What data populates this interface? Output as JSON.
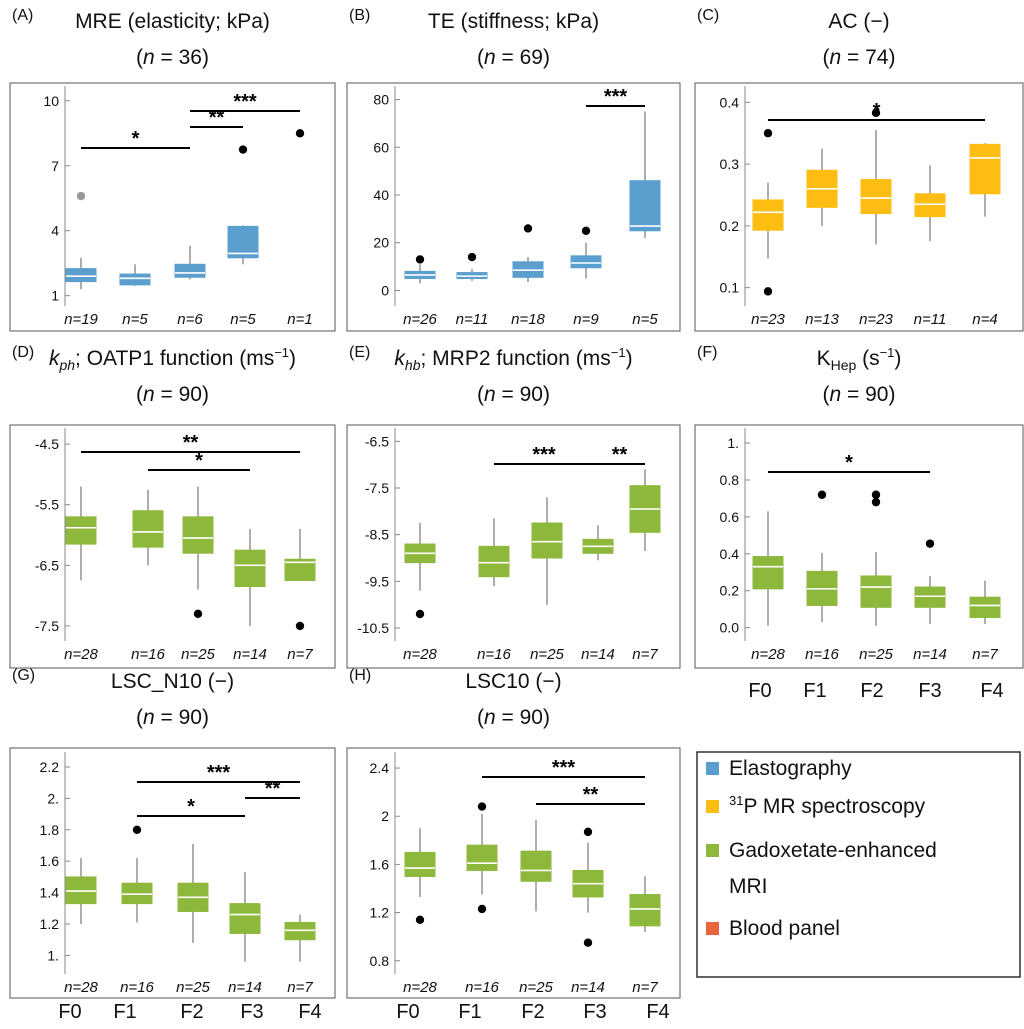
{
  "colors": {
    "elastography": "#5b9fcf",
    "spectroscopy": "#fdbd12",
    "gadoxetate": "#8db83c",
    "blood": "#e8643c"
  },
  "legend": {
    "items": [
      {
        "label": "Elastography",
        "color": "#5b9fcf"
      },
      {
        "label_sup": "31",
        "label": "P MR spectroscopy",
        "color": "#fdbd12"
      },
      {
        "label": "Gadoxetate-enhanced",
        "color": "#8db83c"
      },
      {
        "label": "MRI",
        "color": ""
      },
      {
        "label": "Blood panel",
        "color": "#e8643c"
      }
    ]
  },
  "group_labels": [
    "F0",
    "F1",
    "F2",
    "F3",
    "F4"
  ],
  "chart_data": [
    {
      "panel": "(A)",
      "type": "box",
      "title": "MRE (elasticity; kPa)",
      "subtitle": "(n = 36)",
      "color": "#5b9fcf",
      "ylim": [
        0.8,
        10.5
      ],
      "yticks": [
        1,
        4,
        7,
        10
      ],
      "groups": [
        "F0",
        "F1",
        "F2",
        "F3",
        "F4"
      ],
      "counts": [
        "n=19",
        "n=5",
        "n=6",
        "n=5",
        "n=1"
      ],
      "boxes": [
        {
          "min": 1.3,
          "q1": 1.65,
          "median": 1.9,
          "q3": 2.25,
          "max": 2.75,
          "outliers": [
            5.6
          ]
        },
        {
          "min": 1.45,
          "q1": 1.5,
          "median": 1.8,
          "q3": 2.0,
          "max": 2.45,
          "outliers": []
        },
        {
          "min": 1.75,
          "q1": 1.85,
          "median": 2.05,
          "q3": 2.45,
          "max": 3.3,
          "outliers": []
        },
        {
          "min": 2.45,
          "q1": 2.75,
          "median": 2.95,
          "q3": 4.2,
          "max": 4.25,
          "outliers": [
            7.75
          ]
        },
        {
          "min": null,
          "q1": null,
          "median": null,
          "q3": null,
          "max": null,
          "outliers": [
            8.5
          ]
        }
      ],
      "brackets": [
        {
          "from": 0,
          "to": 2,
          "level": 0,
          "label": "*"
        },
        {
          "from": 2,
          "to": 3,
          "level": 1,
          "label": "**"
        },
        {
          "from": 2,
          "to": 4,
          "level": 2,
          "label": "***"
        }
      ]
    },
    {
      "panel": "(B)",
      "type": "box",
      "title": "TE (stiffness; kPa)",
      "subtitle": "(n = 69)",
      "color": "#5b9fcf",
      "ylim": [
        -4,
        84
      ],
      "yticks": [
        0,
        20,
        40,
        60,
        80
      ],
      "groups": [
        "F0",
        "F1",
        "F2",
        "F3",
        "F4"
      ],
      "counts": [
        "n=26",
        "n=11",
        "n=18",
        "n=9",
        "n=5"
      ],
      "boxes": [
        {
          "min": 3,
          "q1": 5,
          "median": 6.5,
          "q3": 8,
          "max": 11,
          "outliers": [
            13
          ]
        },
        {
          "min": 4,
          "q1": 5,
          "median": 6,
          "q3": 7.5,
          "max": 9,
          "outliers": [
            14
          ]
        },
        {
          "min": 3.5,
          "q1": 5.5,
          "median": 8.5,
          "q3": 12,
          "max": 14,
          "outliers": [
            26
          ]
        },
        {
          "min": 5,
          "q1": 9.5,
          "median": 11.5,
          "q3": 14.5,
          "max": 20,
          "outliers": [
            25
          ]
        },
        {
          "min": 22,
          "q1": 25,
          "median": 27,
          "q3": 46,
          "max": 75,
          "outliers": []
        }
      ],
      "brackets": [
        {
          "from": 3,
          "to": 4,
          "level": 0,
          "label": "***"
        }
      ]
    },
    {
      "panel": "(C)",
      "type": "box",
      "title": "AC (−)",
      "subtitle": "(n = 74)",
      "color": "#fdbd12",
      "ylim": [
        0.08,
        0.42
      ],
      "yticks": [
        0.1,
        0.2,
        0.3,
        0.4
      ],
      "groups": [
        "F0",
        "F1",
        "F2",
        "F3",
        "F4"
      ],
      "counts": [
        "n=23",
        "n=13",
        "n=23",
        "n=11",
        "n=4"
      ],
      "boxes": [
        {
          "min": 0.147,
          "q1": 0.193,
          "median": 0.222,
          "q3": 0.242,
          "max": 0.27,
          "outliers": [
            0.35,
            0.094
          ]
        },
        {
          "min": 0.2,
          "q1": 0.23,
          "median": 0.26,
          "q3": 0.29,
          "max": 0.325,
          "outliers": []
        },
        {
          "min": 0.17,
          "q1": 0.22,
          "median": 0.245,
          "q3": 0.275,
          "max": 0.355,
          "outliers": [
            0.383
          ]
        },
        {
          "min": 0.175,
          "q1": 0.215,
          "median": 0.235,
          "q3": 0.252,
          "max": 0.298,
          "outliers": []
        },
        {
          "min": 0.215,
          "q1": 0.252,
          "median": 0.31,
          "q3": 0.332,
          "max": 0.334,
          "outliers": []
        }
      ],
      "brackets": [
        {
          "from": 0,
          "to": 4,
          "level": 0,
          "label": "*"
        }
      ]
    },
    {
      "panel": "(D)",
      "type": "box",
      "title": "k_ph; OATP1 function (ms⁻¹)",
      "subtitle": "(n = 90)",
      "title_parts": {
        "italic": "k",
        "sub": "ph",
        "rest": "; OATP1 function (ms",
        "sup": "−1",
        "end": ")"
      },
      "color": "#8db83c",
      "ylim": [
        -7.65,
        -4.3
      ],
      "yticks": [
        -4.5,
        -5.5,
        -6.5,
        -7.5
      ],
      "groups": [
        "F0",
        "F1",
        "F2",
        "F3",
        "F4"
      ],
      "counts": [
        "n=28",
        "n=16",
        "n=25",
        "n=14",
        "n=7"
      ],
      "boxes": [
        {
          "min": -6.75,
          "q1": -6.15,
          "median": -5.88,
          "q3": -5.7,
          "max": -5.2,
          "outliers": []
        },
        {
          "min": -6.5,
          "q1": -6.2,
          "median": -5.95,
          "q3": -5.6,
          "max": -5.25,
          "outliers": []
        },
        {
          "min": -6.9,
          "q1": -6.3,
          "median": -6.05,
          "q3": -5.7,
          "max": -5.2,
          "outliers": [
            -7.3
          ]
        },
        {
          "min": -7.5,
          "q1": -6.85,
          "median": -6.5,
          "q3": -6.25,
          "max": -5.9,
          "outliers": []
        },
        {
          "min": -6.75,
          "q1": -6.75,
          "median": -6.45,
          "q3": -6.4,
          "max": -5.9,
          "outliers": [
            -7.5
          ]
        }
      ],
      "brackets": [
        {
          "from": 1,
          "to": 3,
          "level": 0,
          "label": "*"
        },
        {
          "from": 0,
          "to": 4,
          "level": 1,
          "label": "**"
        }
      ]
    },
    {
      "panel": "(E)",
      "type": "box",
      "title": "k_hb; MRP2 function (ms⁻¹)",
      "subtitle": "(n = 90)",
      "title_parts": {
        "italic": "k",
        "sub": "hb",
        "rest": "; MRP2 function (ms",
        "sup": "−1",
        "end": ")"
      },
      "color": "#8db83c",
      "ylim": [
        -10.65,
        -6.3
      ],
      "yticks": [
        -6.5,
        -7.5,
        -8.5,
        -9.5,
        -10.5
      ],
      "groups": [
        "F0",
        "F1",
        "F2",
        "F3",
        "F4"
      ],
      "counts": [
        "n=28",
        "n=16",
        "n=25",
        "n=14",
        "n=7"
      ],
      "boxes": [
        {
          "min": -9.7,
          "q1": -9.1,
          "median": -8.9,
          "q3": -8.7,
          "max": -8.25,
          "outliers": [
            -10.2
          ]
        },
        {
          "min": -9.6,
          "q1": -9.4,
          "median": -9.1,
          "q3": -8.75,
          "max": -8.15,
          "outliers": []
        },
        {
          "min": -10.0,
          "q1": -9.0,
          "median": -8.65,
          "q3": -8.25,
          "max": -7.7,
          "outliers": []
        },
        {
          "min": -9.05,
          "q1": -8.9,
          "median": -8.75,
          "q3": -8.6,
          "max": -8.3,
          "outliers": []
        },
        {
          "min": -8.85,
          "q1": -8.45,
          "median": -7.95,
          "q3": -7.45,
          "max": -7.1,
          "outliers": []
        }
      ],
      "brackets": [
        {
          "from": 3,
          "to": 4,
          "level": 0,
          "label": "**"
        },
        {
          "from": 1,
          "to": 4,
          "level": 1,
          "label": "***"
        }
      ]
    },
    {
      "panel": "(F)",
      "type": "box",
      "title": "K_Hep (s⁻¹)",
      "subtitle": "(n = 90)",
      "title_parts": {
        "italic": "",
        "main": "K",
        "sub": "Hep",
        "rest": " (s",
        "sup": "−1",
        "end": ")"
      },
      "color": "#8db83c",
      "ylim": [
        -0.04,
        1.06
      ],
      "yticks": [
        0.0,
        0.2,
        0.4,
        0.6,
        0.8,
        1.0
      ],
      "ytick_labels": [
        "0.0",
        "0.2",
        "0.4",
        "0.6",
        "0.8",
        "1."
      ],
      "groups": [
        "F0",
        "F1",
        "F2",
        "F3",
        "F4"
      ],
      "counts": [
        "n=28",
        "n=16",
        "n=25",
        "n=14",
        "n=7"
      ],
      "boxes": [
        {
          "min": 0.01,
          "q1": 0.21,
          "median": 0.33,
          "q3": 0.385,
          "max": 0.63,
          "outliers": []
        },
        {
          "min": 0.03,
          "q1": 0.12,
          "median": 0.21,
          "q3": 0.305,
          "max": 0.405,
          "outliers": [
            0.72
          ]
        },
        {
          "min": 0.01,
          "q1": 0.11,
          "median": 0.22,
          "q3": 0.28,
          "max": 0.41,
          "outliers": [
            0.72,
            0.68
          ]
        },
        {
          "min": 0.02,
          "q1": 0.11,
          "median": 0.17,
          "q3": 0.22,
          "max": 0.28,
          "outliers": [
            0.455
          ]
        },
        {
          "min": 0.02,
          "q1": 0.055,
          "median": 0.12,
          "q3": 0.165,
          "max": 0.255,
          "outliers": []
        }
      ],
      "brackets": [
        {
          "from": 0,
          "to": 3,
          "level": 0,
          "label": "*"
        }
      ]
    },
    {
      "panel": "(G)",
      "type": "box",
      "title": "LSC_N10 (−)",
      "subtitle": "(n = 90)",
      "color": "#8db83c",
      "ylim": [
        0.92,
        2.27
      ],
      "yticks": [
        1.0,
        1.2,
        1.4,
        1.6,
        1.8,
        2.0,
        2.2
      ],
      "ytick_labels": [
        "1.",
        "1.2",
        "1.4",
        "1.6",
        "1.8",
        "2.",
        "2.2"
      ],
      "groups": [
        "F0",
        "F1",
        "F2",
        "F3",
        "F4"
      ],
      "counts": [
        "n=28",
        "n=16",
        "n=25",
        "n=14",
        "n=7"
      ],
      "boxes": [
        {
          "min": 1.2,
          "q1": 1.33,
          "median": 1.41,
          "q3": 1.5,
          "max": 1.62,
          "outliers": []
        },
        {
          "min": 1.21,
          "q1": 1.33,
          "median": 1.39,
          "q3": 1.46,
          "max": 1.62,
          "outliers": [
            1.8
          ]
        },
        {
          "min": 1.08,
          "q1": 1.28,
          "median": 1.37,
          "q3": 1.46,
          "max": 1.71,
          "outliers": []
        },
        {
          "min": 0.96,
          "q1": 1.14,
          "median": 1.26,
          "q3": 1.33,
          "max": 1.53,
          "outliers": []
        },
        {
          "min": 0.96,
          "q1": 1.1,
          "median": 1.16,
          "q3": 1.21,
          "max": 1.26,
          "outliers": []
        }
      ],
      "brackets": [
        {
          "from": 1,
          "to": 3,
          "level": 0,
          "label": "*"
        },
        {
          "from": 3,
          "to": 4,
          "level": 1,
          "label": "**"
        },
        {
          "from": 1,
          "to": 4,
          "level": 2,
          "label": "***"
        }
      ]
    },
    {
      "panel": "(H)",
      "type": "box",
      "title": "LSC10 (−)",
      "subtitle": "(n = 90)",
      "color": "#8db83c",
      "ylim": [
        0.74,
        2.5
      ],
      "yticks": [
        0.8,
        1.2,
        1.6,
        2.0,
        2.4
      ],
      "ytick_labels": [
        "0.8",
        "1.2",
        "1.6",
        "2",
        "2.4"
      ],
      "groups": [
        "F0",
        "F1",
        "F2",
        "F3",
        "F4"
      ],
      "counts": [
        "n=28",
        "n=16",
        "n=25",
        "n=14",
        "n=7"
      ],
      "boxes": [
        {
          "min": 1.33,
          "q1": 1.5,
          "median": 1.57,
          "q3": 1.7,
          "max": 1.9,
          "outliers": [
            1.14
          ]
        },
        {
          "min": 1.35,
          "q1": 1.55,
          "median": 1.61,
          "q3": 1.76,
          "max": 2.02,
          "outliers": [
            2.08,
            1.23
          ]
        },
        {
          "min": 1.21,
          "q1": 1.46,
          "median": 1.55,
          "q3": 1.71,
          "max": 1.97,
          "outliers": []
        },
        {
          "min": 1.2,
          "q1": 1.33,
          "median": 1.44,
          "q3": 1.55,
          "max": 1.78,
          "outliers": [
            1.87,
            0.95
          ]
        },
        {
          "min": 1.04,
          "q1": 1.09,
          "median": 1.23,
          "q3": 1.35,
          "max": 1.5,
          "outliers": []
        }
      ],
      "brackets": [
        {
          "from": 2,
          "to": 4,
          "level": 0,
          "label": "**"
        },
        {
          "from": 1,
          "to": 4,
          "level": 1,
          "label": "***"
        }
      ]
    }
  ]
}
